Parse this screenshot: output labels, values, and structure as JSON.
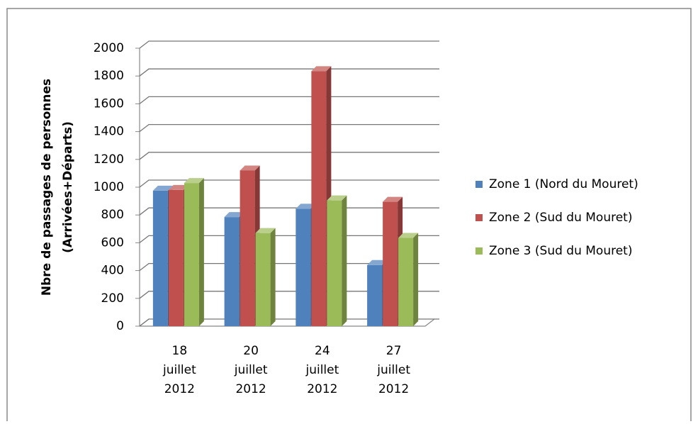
{
  "chart_data": {
    "type": "bar3d",
    "ylabel": [
      "Nbre de passages de personnes",
      "(Arrivées+Départs)"
    ],
    "categories": [
      "18 juillet 2012",
      "20 juillet 2012",
      "24 juillet 2012",
      "27 juillet 2012"
    ],
    "series": [
      {
        "name": "Zone 1 (Nord du Mouret)",
        "color": "#4f81bd",
        "values": [
          975,
          785,
          845,
          440
        ]
      },
      {
        "name": "Zone 2 (Sud du Mouret)",
        "color": "#c0504d",
        "values": [
          980,
          1120,
          1835,
          895
        ]
      },
      {
        "name": "Zone 3 (Sud du Mouret)",
        "color": "#9bbb59",
        "values": [
          1030,
          670,
          905,
          635
        ]
      }
    ],
    "ylim": [
      0,
      2000
    ],
    "yticks": [
      0,
      200,
      400,
      600,
      800,
      1000,
      1200,
      1400,
      1600,
      1800,
      2000
    ],
    "grid": true,
    "legend": "right"
  }
}
